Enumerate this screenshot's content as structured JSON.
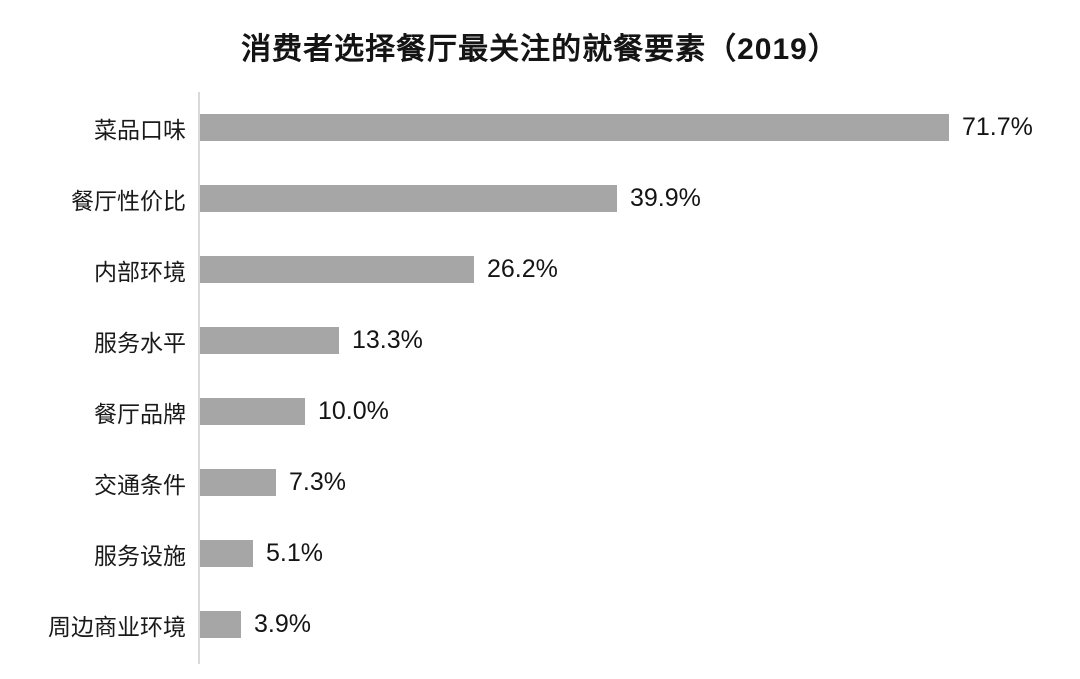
{
  "page": {
    "background": "#ffffff"
  },
  "chart_data": {
    "type": "bar",
    "orientation": "horizontal",
    "title": "消费者选择餐厅最关注的就餐要素（2019）",
    "categories": [
      "菜品口味",
      "餐厅性价比",
      "内部环境",
      "服务水平",
      "餐厅品牌",
      "交通条件",
      "服务设施",
      "周边商业环境"
    ],
    "values": [
      71.7,
      39.9,
      26.2,
      13.3,
      10.0,
      7.3,
      5.1,
      3.9
    ],
    "value_labels": [
      "71.7%",
      "39.9%",
      "26.2%",
      "13.3%",
      "10.0%",
      "7.3%",
      "5.1%",
      "3.9%"
    ],
    "xlabel": "",
    "ylabel": "",
    "xlim": [
      0,
      80
    ],
    "grid": false,
    "legend": false,
    "bar_color": "#a6a6a6",
    "axis_line_color": "#d9d9d9",
    "text_color": "#1a1a1a"
  }
}
